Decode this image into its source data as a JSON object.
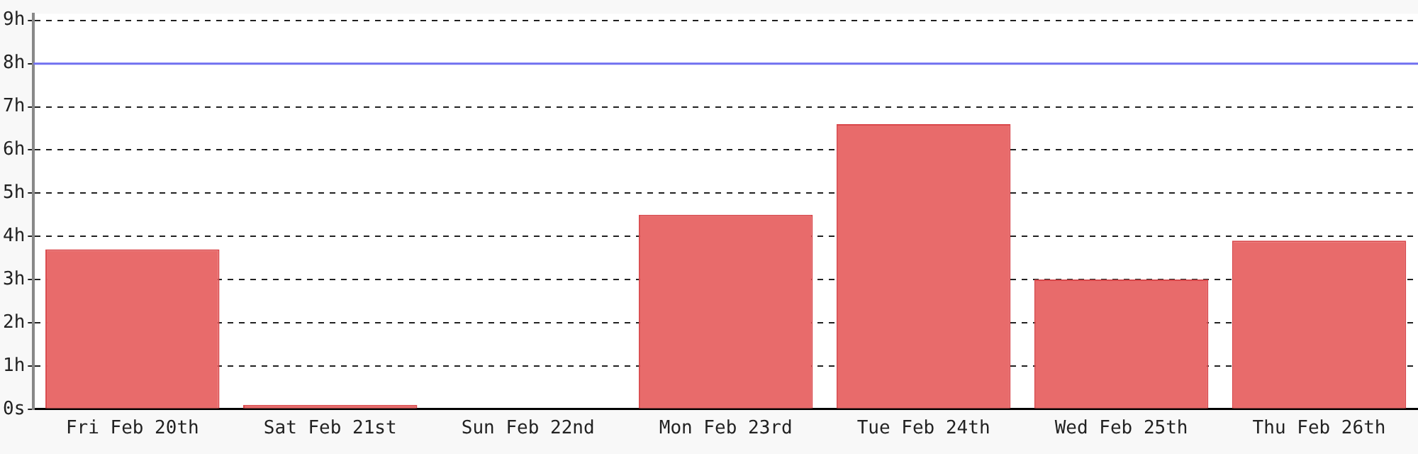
{
  "chart_data": {
    "type": "bar",
    "categories": [
      "Fri Feb 20th",
      "Sat Feb 21st",
      "Sun Feb 22nd",
      "Mon Feb 23rd",
      "Tue Feb 24th",
      "Wed Feb 25th",
      "Thu Feb 26th"
    ],
    "values": [
      3.7,
      0.1,
      0,
      4.5,
      6.6,
      3.0,
      3.9
    ],
    "color": "#e86b6b",
    "ylim": [
      0,
      9.15
    ],
    "yticks": [
      {
        "value": 0,
        "label": "0s"
      },
      {
        "value": 1,
        "label": "1h"
      },
      {
        "value": 2,
        "label": "2h"
      },
      {
        "value": 3,
        "label": "3h"
      },
      {
        "value": 4,
        "label": "4h"
      },
      {
        "value": 5,
        "label": "5h"
      },
      {
        "value": 6,
        "label": "6h"
      },
      {
        "value": 7,
        "label": "7h"
      },
      {
        "value": 8,
        "label": "8h"
      },
      {
        "value": 9,
        "label": "9h"
      }
    ],
    "grid": "y",
    "ref_lines": [
      {
        "axis": "y",
        "value": 8,
        "color": "#7070f0"
      }
    ]
  }
}
